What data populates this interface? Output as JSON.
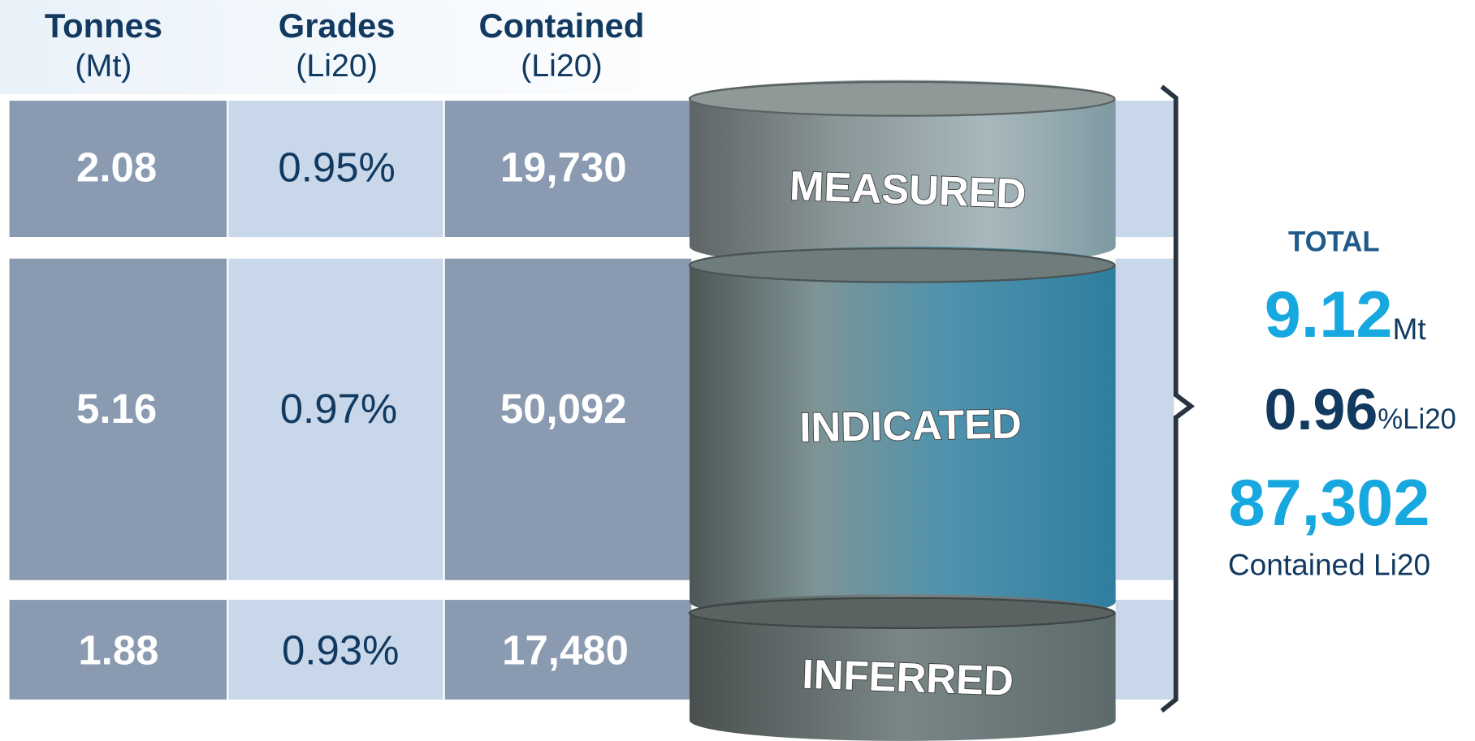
{
  "header": {
    "columns": [
      {
        "title": "Tonnes",
        "unit": "(Mt)"
      },
      {
        "title": "Grades",
        "unit": "(Li20)"
      },
      {
        "title": "Contained",
        "unit": "(Li20)"
      }
    ]
  },
  "table": {
    "rows": [
      [
        "2.08",
        "0.95%",
        "19,730"
      ],
      [
        "5.16",
        "0.97%",
        "50,092"
      ],
      [
        "1.88",
        "0.93%",
        "17,480"
      ]
    ]
  },
  "cylinder": {
    "labels": [
      "MEASURED",
      "INDICATED",
      "INFERRED"
    ]
  },
  "total": {
    "title": "TOTAL",
    "tonnes": "9.12",
    "tonnes_unit": "Mt",
    "grade": "0.96",
    "grade_unit": "%Li20",
    "contained": "87,302",
    "contained_unit": "Contained Li20"
  }
}
